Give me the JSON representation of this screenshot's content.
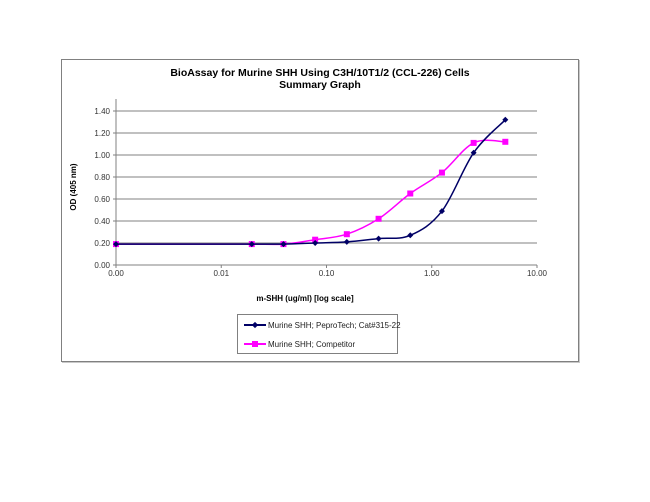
{
  "chart_data": {
    "type": "line",
    "title": "BioAssay for Murine SHH Using C3H/10T1/2 (CCL-226) Cells",
    "subtitle": "Summary Graph",
    "xlabel": "m-SHH (ug/ml) [log scale]",
    "ylabel": "OD (405 nm)",
    "x_scale": "log",
    "xlim": [
      0.001,
      10
    ],
    "ylim": [
      0,
      1.4
    ],
    "x_tick_labels": [
      "0.00",
      "0.01",
      "0.10",
      "1.00",
      "10.00"
    ],
    "x_tick_values": [
      0.001,
      0.01,
      0.1,
      1,
      10
    ],
    "y_tick_labels": [
      "0.00",
      "0.20",
      "0.40",
      "0.60",
      "0.80",
      "1.00",
      "1.20",
      "1.40"
    ],
    "y_tick_values": [
      0,
      0.2,
      0.4,
      0.6,
      0.8,
      1.0,
      1.2,
      1.4
    ],
    "grid": "horizontal",
    "legend_position": "bottom-center",
    "x": [
      0.001,
      0.0195,
      0.039,
      0.078,
      0.156,
      0.3125,
      0.625,
      1.25,
      2.5,
      5.0
    ],
    "series": [
      {
        "name": "Murine SHH; PeproTech; Cat#315-22",
        "color": "#000066",
        "marker": "diamond",
        "values": [
          0.19,
          0.19,
          0.19,
          0.2,
          0.21,
          0.24,
          0.27,
          0.49,
          1.02,
          1.32
        ]
      },
      {
        "name": "Murine SHH; Competitor",
        "color": "#ff00ff",
        "marker": "square",
        "values": [
          0.19,
          0.19,
          0.19,
          0.23,
          0.28,
          0.42,
          0.65,
          0.84,
          1.11,
          1.12
        ]
      }
    ]
  }
}
